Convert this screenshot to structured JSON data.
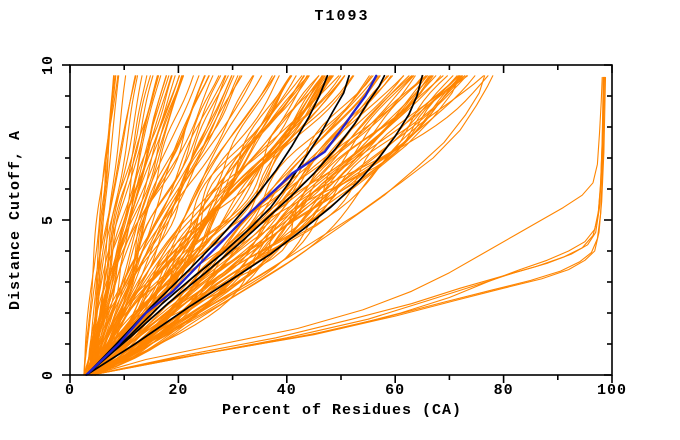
{
  "page": {
    "background": "#ffffff"
  },
  "chart_data": {
    "type": "line",
    "title": "T1093",
    "xlabel": "Percent of Residues (CA)",
    "ylabel": "Distance Cutoff, A",
    "xlim": [
      0,
      100
    ],
    "ylim": [
      0,
      10
    ],
    "grid": false,
    "legend": "none",
    "x_ticks_major": [
      0,
      20,
      40,
      60,
      80,
      100
    ],
    "x_ticks_minor": [
      10,
      30,
      50,
      70,
      90
    ],
    "x_tick_labels": [
      "0",
      "20",
      "40",
      "60",
      "80",
      "100"
    ],
    "y_ticks_major": [
      0,
      5,
      10
    ],
    "y_ticks_minor": [
      1,
      2,
      3,
      4,
      6,
      7,
      8,
      9
    ],
    "y_tick_labels": [
      "0",
      "5",
      "10"
    ],
    "colors": {
      "model_lines": "#ff8500",
      "highlight_blue": "#2222cc",
      "highlight_black": "#000000",
      "axis": "#000000",
      "background": "#ffffff"
    },
    "series": {
      "orange_bundle": {
        "description": "dense fan of predicted-model curves, percent at cutoff 9.65 spread 8-78",
        "count": 135,
        "seed": 7,
        "start_percent_range": [
          2.5,
          4.8
        ],
        "end_percent_range": [
          8,
          78
        ],
        "cutoff_max": 9.65
      },
      "orange_mid_curves": [
        [
          [
            4,
            0
          ],
          [
            12,
            0.8
          ],
          [
            22,
            1.8
          ],
          [
            33,
            3.0
          ],
          [
            44,
            4.2
          ],
          [
            53,
            5.2
          ],
          [
            61,
            6.2
          ],
          [
            67,
            7.0
          ],
          [
            72,
            7.9
          ],
          [
            75,
            8.7
          ],
          [
            77,
            9.3
          ],
          [
            78,
            9.65
          ]
        ],
        [
          [
            4,
            0
          ],
          [
            16,
            1.1
          ],
          [
            28,
            2.3
          ],
          [
            40,
            3.6
          ],
          [
            50,
            4.8
          ],
          [
            58,
            5.8
          ],
          [
            64,
            6.7
          ],
          [
            69,
            7.5
          ],
          [
            73,
            8.4
          ],
          [
            75.5,
            9.1
          ],
          [
            76.5,
            9.65
          ]
        ],
        [
          [
            4,
            0
          ],
          [
            10,
            0.7
          ],
          [
            18,
            1.6
          ],
          [
            28,
            2.8
          ],
          [
            38,
            4.1
          ],
          [
            47,
            5.3
          ],
          [
            55,
            6.4
          ],
          [
            62,
            7.4
          ],
          [
            67,
            8.3
          ],
          [
            70.5,
            9.1
          ],
          [
            72,
            9.65
          ]
        ]
      ],
      "orange_good_curves": [
        [
          [
            4,
            0
          ],
          [
            14,
            0.5
          ],
          [
            28,
            1.0
          ],
          [
            42,
            1.5
          ],
          [
            54,
            2.1
          ],
          [
            63,
            2.7
          ],
          [
            70,
            3.3
          ],
          [
            76,
            3.9
          ],
          [
            82,
            4.5
          ],
          [
            87,
            5.0
          ],
          [
            91,
            5.4
          ],
          [
            94.5,
            5.8
          ],
          [
            96.5,
            6.2
          ],
          [
            97.3,
            6.8
          ],
          [
            97.7,
            7.8
          ],
          [
            98,
            8.8
          ],
          [
            98.2,
            9.6
          ]
        ],
        [
          [
            4,
            0
          ],
          [
            18,
            0.5
          ],
          [
            35,
            1.0
          ],
          [
            50,
            1.5
          ],
          [
            61,
            2.0
          ],
          [
            70,
            2.5
          ],
          [
            77,
            3.0
          ],
          [
            83,
            3.4
          ],
          [
            88,
            3.7
          ],
          [
            92,
            4.0
          ],
          [
            95,
            4.3
          ],
          [
            96.8,
            4.7
          ],
          [
            97.5,
            5.3
          ],
          [
            97.9,
            6.2
          ],
          [
            98.2,
            7.5
          ],
          [
            98.5,
            9.6
          ]
        ],
        [
          [
            4,
            0
          ],
          [
            22,
            0.6
          ],
          [
            40,
            1.2
          ],
          [
            55,
            1.8
          ],
          [
            66,
            2.4
          ],
          [
            75,
            2.9
          ],
          [
            82,
            3.3
          ],
          [
            88,
            3.6
          ],
          [
            92.5,
            3.9
          ],
          [
            95.5,
            4.2
          ],
          [
            97,
            4.6
          ],
          [
            97.7,
            5.4
          ],
          [
            98.1,
            6.6
          ],
          [
            98.4,
            8.0
          ],
          [
            98.6,
            9.6
          ]
        ],
        [
          [
            4,
            0
          ],
          [
            20,
            0.6
          ],
          [
            38,
            1.2
          ],
          [
            52,
            1.8
          ],
          [
            63,
            2.3
          ],
          [
            72,
            2.8
          ],
          [
            80,
            3.2
          ],
          [
            86,
            3.5
          ],
          [
            91,
            3.8
          ],
          [
            94.5,
            4.1
          ],
          [
            96.5,
            4.5
          ],
          [
            97.4,
            5.1
          ],
          [
            97.9,
            6.1
          ],
          [
            98.2,
            7.6
          ],
          [
            98.4,
            9.6
          ]
        ],
        [
          [
            4,
            0
          ],
          [
            25,
            0.7
          ],
          [
            45,
            1.3
          ],
          [
            60,
            1.9
          ],
          [
            71,
            2.4
          ],
          [
            80,
            2.8
          ],
          [
            87,
            3.1
          ],
          [
            92,
            3.4
          ],
          [
            95,
            3.7
          ],
          [
            96.8,
            4.0
          ],
          [
            97.6,
            4.6
          ],
          [
            98.1,
            5.6
          ],
          [
            98.5,
            7.2
          ],
          [
            98.8,
            9.6
          ]
        ],
        [
          [
            4,
            0
          ],
          [
            23,
            0.65
          ],
          [
            43,
            1.25
          ],
          [
            58,
            1.85
          ],
          [
            69,
            2.35
          ],
          [
            78,
            2.75
          ],
          [
            85,
            3.05
          ],
          [
            90.5,
            3.35
          ],
          [
            94,
            3.65
          ],
          [
            96.2,
            3.95
          ],
          [
            97.3,
            4.4
          ],
          [
            97.9,
            5.2
          ],
          [
            98.3,
            6.8
          ],
          [
            98.6,
            9.6
          ]
        ]
      ],
      "black_curves": [
        [
          [
            3,
            0
          ],
          [
            8,
            0.9
          ],
          [
            15,
            2.2
          ],
          [
            22,
            3.4
          ],
          [
            27,
            4.3
          ],
          [
            31,
            5.1
          ],
          [
            34,
            5.7
          ],
          [
            38,
            6.6
          ],
          [
            41,
            7.4
          ],
          [
            44,
            8.3
          ],
          [
            46,
            9.0
          ],
          [
            47.5,
            9.65
          ]
        ],
        [
          [
            3,
            0
          ],
          [
            10,
            1.1
          ],
          [
            17,
            2.3
          ],
          [
            23,
            3.2
          ],
          [
            28,
            3.9
          ],
          [
            33,
            4.7
          ],
          [
            37,
            5.4
          ],
          [
            40,
            6.1
          ],
          [
            43,
            6.9
          ],
          [
            46,
            7.7
          ],
          [
            48.5,
            8.5
          ],
          [
            50.5,
            9.1
          ],
          [
            51.5,
            9.65
          ]
        ],
        [
          [
            3,
            0
          ],
          [
            11,
            1.2
          ],
          [
            18,
            2.3
          ],
          [
            25,
            3.3
          ],
          [
            31,
            4.2
          ],
          [
            36,
            5.0
          ],
          [
            41,
            5.8
          ],
          [
            45,
            6.5
          ],
          [
            49,
            7.3
          ],
          [
            52.5,
            8.1
          ],
          [
            55,
            8.8
          ],
          [
            57,
            9.3
          ],
          [
            58,
            9.65
          ]
        ],
        [
          [
            3,
            0
          ],
          [
            12,
            1.0
          ],
          [
            22,
            2.2
          ],
          [
            30,
            3.1
          ],
          [
            37,
            3.9
          ],
          [
            43,
            4.7
          ],
          [
            48,
            5.4
          ],
          [
            53,
            6.2
          ],
          [
            57,
            7.0
          ],
          [
            60,
            7.7
          ],
          [
            62.5,
            8.4
          ],
          [
            64,
            9.0
          ],
          [
            65,
            9.65
          ]
        ]
      ],
      "blue_curve": [
        [
          3,
          0
        ],
        [
          9,
          1
        ],
        [
          14,
          2
        ],
        [
          19,
          2.7
        ],
        [
          24,
          3.6
        ],
        [
          28,
          4.3
        ],
        [
          33,
          5.2
        ],
        [
          38,
          6.0
        ],
        [
          41,
          6.5
        ],
        [
          47,
          7.2
        ],
        [
          50,
          7.9
        ],
        [
          52,
          8.4
        ],
        [
          54.5,
          9.0
        ],
        [
          56.5,
          9.65
        ]
      ]
    }
  }
}
